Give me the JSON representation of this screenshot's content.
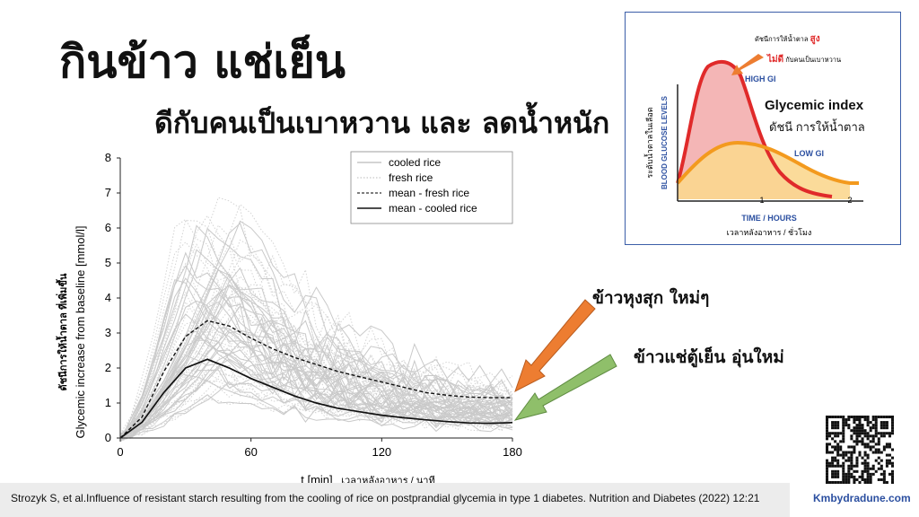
{
  "slide": {
    "title": "กินข้าว แช่เย็น",
    "subtitle": "ดีกับคนเป็นเบาหวาน และ ลดน้ำหนัก",
    "arrow_label_fresh": "ข้าวหุงสุก ใหม่ๆ",
    "arrow_label_cooled": "ข้าวแช่ตู้เย็น อุ่นใหม่",
    "citation": "Strozyk S, et al.Influence of resistant starch resulting from the cooling of rice on postprandial glycemia in type 1 diabetes. Nutrition and Diabetes (2022) 12:21",
    "website": "Kmbydradune.com",
    "colors": {
      "arrow_fresh": "#ed7d31",
      "arrow_cooled": "#8fbf6a",
      "gi_frame": "#3b5ea8"
    }
  },
  "chart_data": [
    {
      "type": "line",
      "xlabel": "t [min]",
      "xlabel_thai": "เวลาหลังอาหาร / นาที",
      "ylabel": "Glycemic increase from baseline [mmol/l]",
      "ylabel_thai": "ดัชนีการให้น้ำตาล ที่เพิ่มขึ้น",
      "xlim": [
        0,
        180
      ],
      "ylim": [
        0,
        8
      ],
      "x_ticks": [
        0,
        60,
        120,
        180
      ],
      "y_ticks": [
        0,
        1,
        2,
        3,
        4,
        5,
        6,
        7,
        8
      ],
      "grid": false,
      "legend_position": "top-right",
      "legend": [
        "cooled rice",
        "fresh rice",
        "mean - fresh rice",
        "mean - cooled rice"
      ],
      "x": [
        0,
        10,
        20,
        30,
        40,
        50,
        60,
        70,
        80,
        90,
        100,
        110,
        120,
        130,
        140,
        150,
        160,
        170,
        180
      ],
      "series": [
        {
          "name": "mean - fresh rice",
          "style": "dashed",
          "values": [
            0.0,
            0.6,
            1.9,
            2.9,
            3.35,
            3.2,
            2.85,
            2.55,
            2.3,
            2.1,
            1.9,
            1.75,
            1.6,
            1.45,
            1.3,
            1.22,
            1.17,
            1.15,
            1.15
          ]
        },
        {
          "name": "mean - cooled rice",
          "style": "solid",
          "values": [
            0.0,
            0.45,
            1.3,
            2.0,
            2.25,
            2.0,
            1.7,
            1.45,
            1.2,
            1.0,
            0.85,
            0.75,
            0.65,
            0.58,
            0.52,
            0.47,
            0.43,
            0.42,
            0.44
          ]
        }
      ],
      "individual_curves_note_hidden": true
    },
    {
      "type": "area",
      "title": "Glycemic index",
      "title_thai": "ดัชนี การให้น้ำตาล",
      "ylabel": "BLOOD GLUCOSE LEVELS",
      "ylabel_thai": "ระดับน้ำตาลในเลือด",
      "xlabel": "TIME / HOURS",
      "xlabel_thai": "เวลาหลังอาหาร / ชั่วโมง",
      "x_ticks": [
        "1",
        "2"
      ],
      "annotation_high_line1_prefix": "ดัชนีการให้น้ำตาล",
      "annotation_high_line1_emph": "สูง",
      "annotation_high_line2_emph": "ไม่ดี",
      "annotation_high_line2_suffix": "กับคนเป็นเบาหวาน",
      "series": [
        {
          "name": "HIGH GI",
          "color": "#e02a2a",
          "fill": "#f4b6b6"
        },
        {
          "name": "LOW GI",
          "color": "#f39a1e",
          "fill": "#fbd78f"
        }
      ]
    }
  ]
}
